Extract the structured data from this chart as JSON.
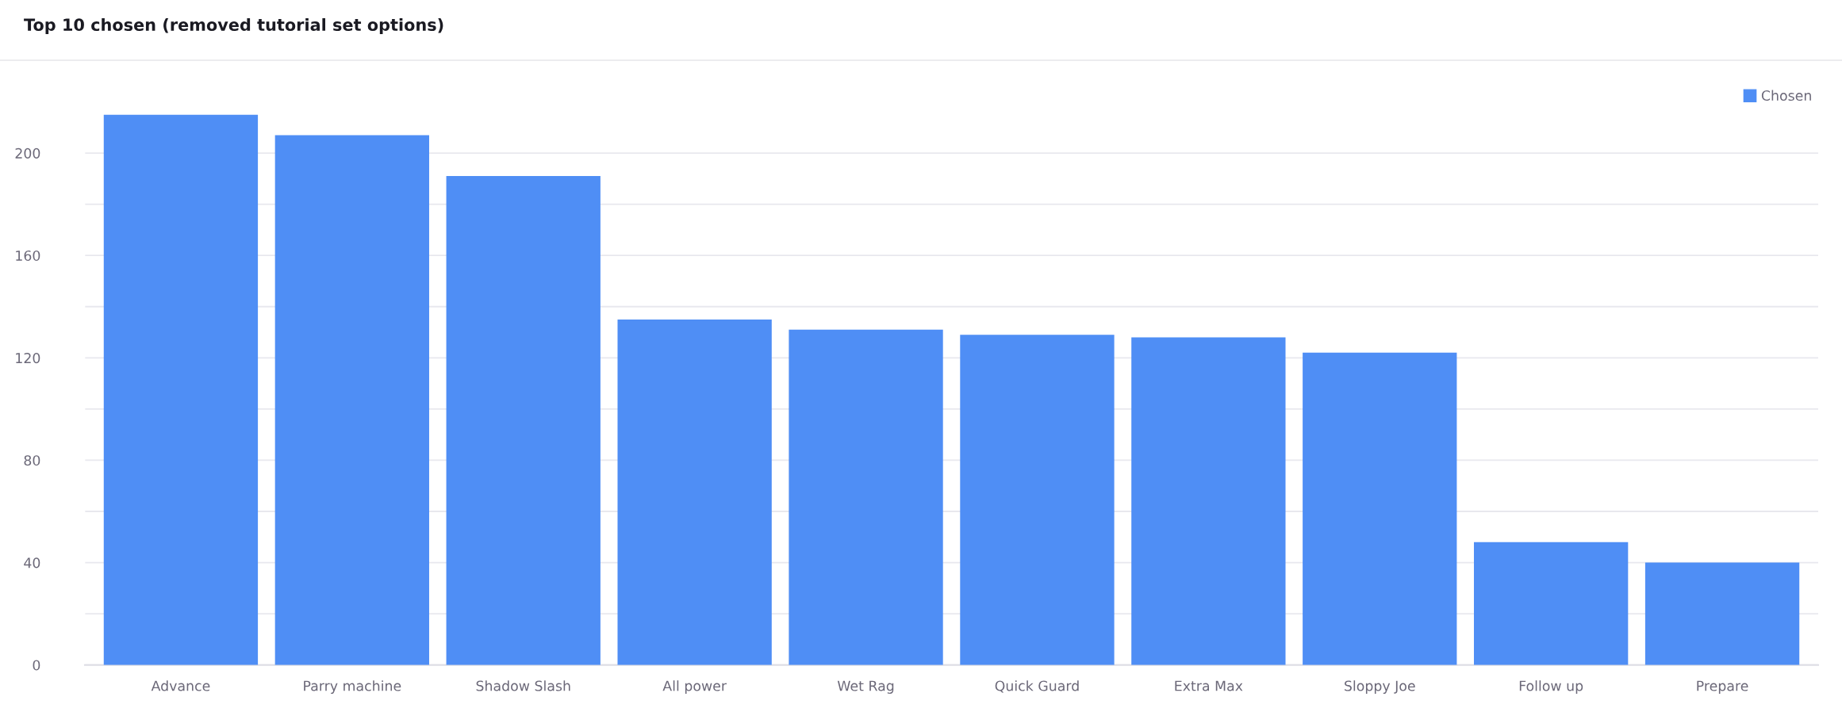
{
  "chart_data": {
    "type": "bar",
    "title": "Top 10 chosen (removed tutorial set options)",
    "categories": [
      "Advance",
      "Parry machine",
      "Shadow Slash",
      "All power",
      "Wet Rag",
      "Quick Guard",
      "Extra Max",
      "Sloppy Joe",
      "Follow up",
      "Prepare"
    ],
    "series": [
      {
        "name": "Chosen",
        "color": "#4f8ef5",
        "values": [
          215,
          207,
          191,
          135,
          131,
          129,
          128,
          122,
          48,
          40
        ]
      }
    ],
    "ylim": [
      0,
      220
    ],
    "yticks": [
      0,
      {
        "value": 20,
        "label": null
      },
      40,
      {
        "value": 60,
        "label": null
      },
      80,
      {
        "value": 100,
        "label": null
      },
      120,
      {
        "value": 140,
        "label": null
      },
      160,
      {
        "value": 180,
        "label": null
      },
      200
    ],
    "grid": "y",
    "legend": "top right"
  }
}
